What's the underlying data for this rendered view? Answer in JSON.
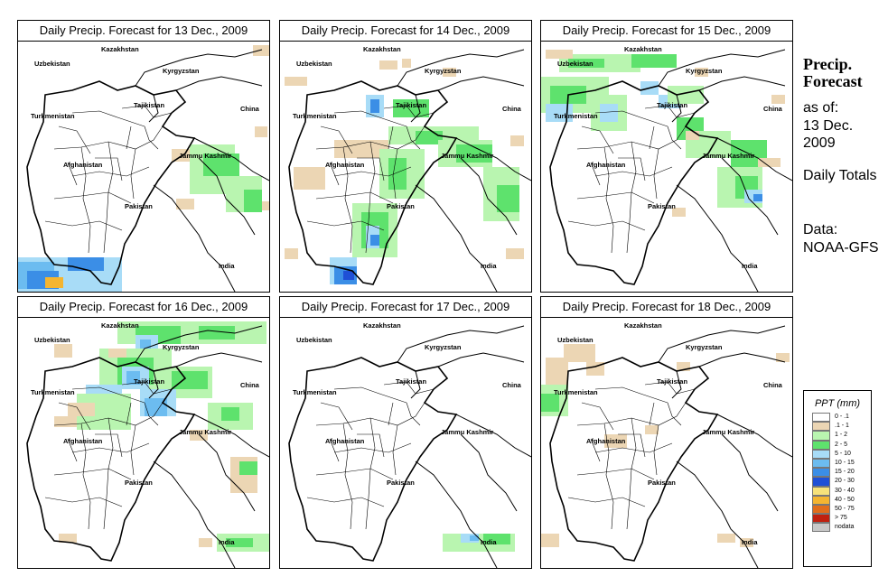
{
  "panels": [
    {
      "title": "Daily Precip. Forecast for  13 Dec., 2009"
    },
    {
      "title": "Daily Precip. Forecast for  14 Dec., 2009"
    },
    {
      "title": "Daily Precip. Forecast for  15 Dec., 2009"
    },
    {
      "title": "Daily Precip. Forecast for  16 Dec., 2009"
    },
    {
      "title": "Daily Precip. Forecast for  17 Dec., 2009"
    },
    {
      "title": "Daily Precip. Forecast for  18 Dec., 2009"
    }
  ],
  "map_labels": {
    "kazakhstan": "Kazakhstan",
    "uzbekistan": "Uzbekistan",
    "kyrgyzstan": "Kyrgyzstan",
    "tajikistan": "Tajikistan",
    "turkmenistan": "Turkmenistan",
    "china": "China",
    "afghanistan": "Afghanistan",
    "jammu_kashmir": "Jammu Kashmir",
    "pakistan": "Pakistan",
    "india": "India"
  },
  "side": {
    "title": "Precip. Forecast",
    "as_of_label": "as of:",
    "date": "13 Dec. 2009",
    "totals": "Daily Totals",
    "data_label": "Data:",
    "source": "NOAA-GFS"
  },
  "legend": {
    "title": "PPT (mm)",
    "entries": [
      {
        "label": "0 - .1",
        "color": "#ffffff"
      },
      {
        "label": ".1 - 1",
        "color": "#ecd6b4"
      },
      {
        "label": "1 - 2",
        "color": "#b9f5b0"
      },
      {
        "label": "2 - 5",
        "color": "#5ee26d"
      },
      {
        "label": "5 - 10",
        "color": "#a8dcf7"
      },
      {
        "label": "10 - 15",
        "color": "#6cbcf0"
      },
      {
        "label": "15 - 20",
        "color": "#3b8ee6"
      },
      {
        "label": "20 - 30",
        "color": "#1f50d6"
      },
      {
        "label": "30 - 40",
        "color": "#f7e27a"
      },
      {
        "label": "40 - 50",
        "color": "#f4b531"
      },
      {
        "label": "50 - 75",
        "color": "#e06d1c"
      },
      {
        "label": "> 75",
        "color": "#c0200f"
      },
      {
        "label": "nodata",
        "color": "#c8c8c8"
      }
    ]
  }
}
